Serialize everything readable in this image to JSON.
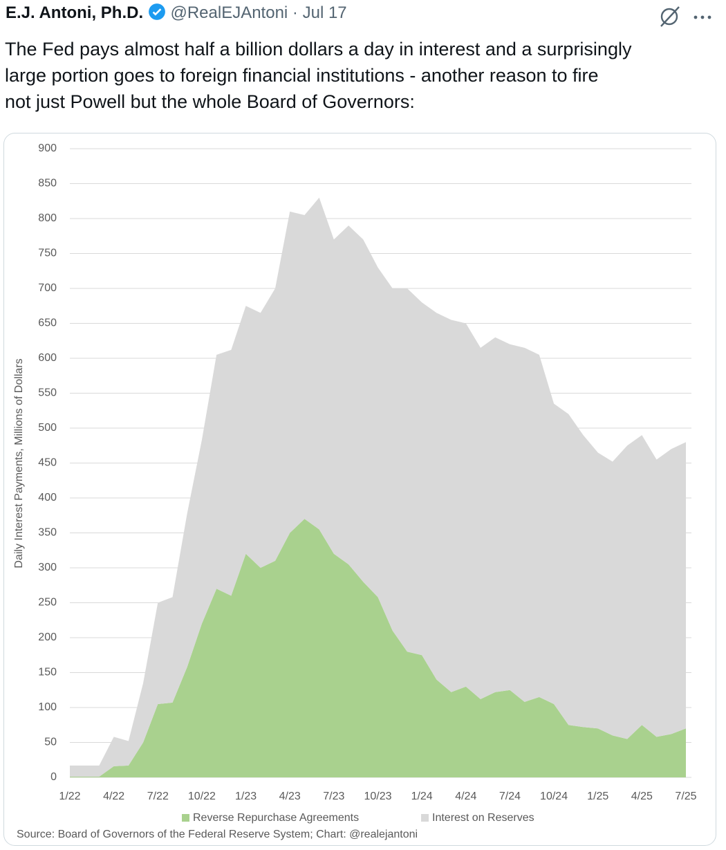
{
  "tweet": {
    "author": "E.J. Antoni, Ph.D.",
    "handle": "@RealEJAntoni",
    "separator": "·",
    "date": "Jul 17",
    "text_lines": [
      "The Fed pays almost half a billion dollars a day in interest and a surprisingly",
      "large portion goes to foreign financial institutions - another reason to fire",
      "not just Powell but the whole Board of Governors:"
    ]
  },
  "chart_data": {
    "type": "stacked_area",
    "y_label": "Daily Interest Payments, Millions of Dollars",
    "source": "Source: Board of Governors of the Federal Reserve System; Chart: @realejantoni",
    "categories": [
      "1/22",
      null,
      null,
      "4/22",
      null,
      null,
      "7/22",
      null,
      null,
      "10/22",
      null,
      null,
      "1/23",
      null,
      null,
      "4/23",
      null,
      null,
      "7/23",
      null,
      null,
      "10/23",
      null,
      null,
      "1/24",
      null,
      null,
      "4/24",
      null,
      null,
      "7/24",
      null,
      null,
      "10/24",
      null,
      null,
      "1/25",
      null,
      null,
      "4/25",
      null,
      null,
      "7/25"
    ],
    "series": [
      {
        "name": "Reverse Repurchase Agreements",
        "color": "#a9d18e",
        "values": [
          1,
          1,
          1,
          16,
          17,
          50,
          105,
          107,
          158,
          220,
          270,
          260,
          320,
          300,
          310,
          350,
          370,
          355,
          320,
          305,
          280,
          258,
          210,
          180,
          175,
          140,
          122,
          130,
          112,
          122,
          125,
          108,
          115,
          105,
          75,
          72,
          70,
          60,
          55,
          75,
          58,
          62,
          70
        ]
      },
      {
        "name": "Interest on Reserves",
        "color": "#d9d9d9",
        "values": [
          16,
          16,
          16,
          42,
          35,
          85,
          145,
          151,
          220,
          263,
          335,
          352,
          355,
          365,
          390,
          460,
          435,
          475,
          450,
          485,
          490,
          472,
          490,
          520,
          505,
          525,
          533,
          520,
          503,
          508,
          495,
          507,
          490,
          430,
          445,
          418,
          395,
          392,
          420,
          415,
          397,
          408,
          410
        ]
      }
    ],
    "ylim": [
      0,
      900
    ],
    "yticks": [
      0,
      50,
      100,
      150,
      200,
      250,
      300,
      350,
      400,
      450,
      500,
      550,
      600,
      650,
      700,
      750,
      800,
      850,
      900
    ],
    "grid": true
  }
}
